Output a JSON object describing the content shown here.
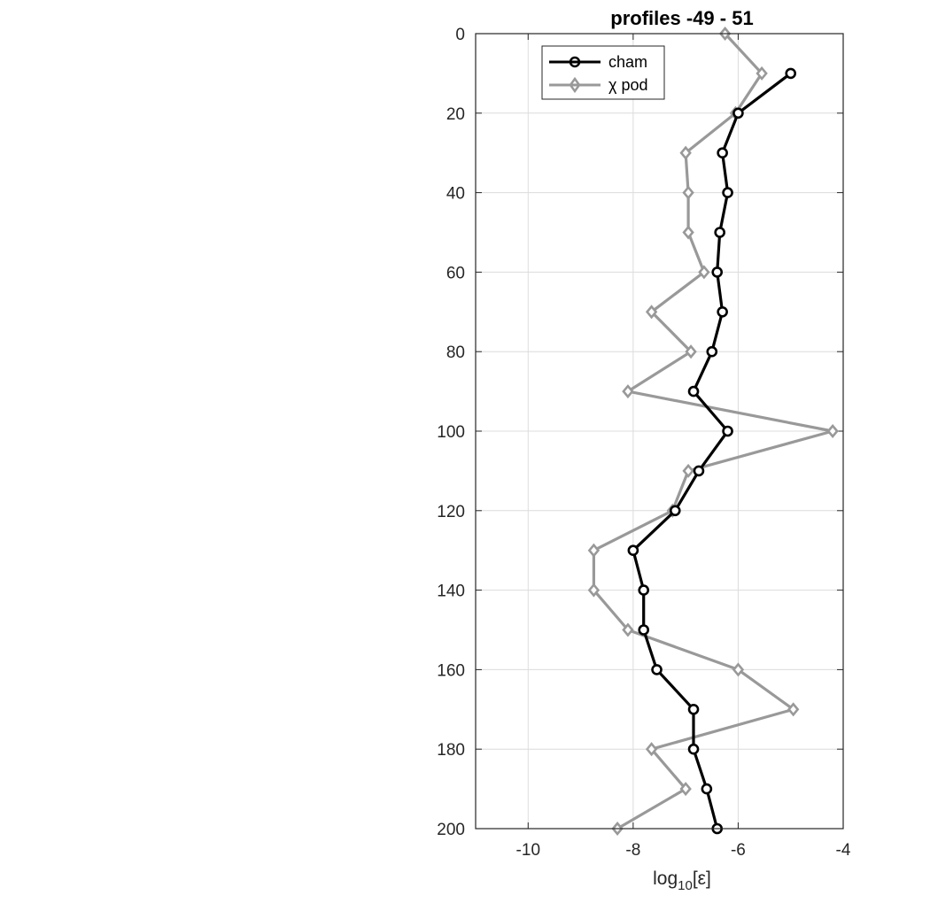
{
  "chart_data": {
    "type": "line",
    "title": "profiles -49 - 51",
    "xlabel": "log",
    "xlabel_sub": "10",
    "xlabel_suffix": "[ε]",
    "ylabel": "",
    "xlim": [
      -11,
      -4
    ],
    "ylim": [
      0,
      200
    ],
    "y_reversed": true,
    "x_ticks": [
      -10,
      -8,
      -6,
      -4
    ],
    "y_ticks": [
      0,
      20,
      40,
      60,
      80,
      100,
      120,
      140,
      160,
      180,
      200
    ],
    "grid": true,
    "legend_position": "top-left",
    "series": [
      {
        "name": "cham",
        "color": "#000000",
        "marker": "circle",
        "y": [
          10,
          20,
          30,
          40,
          50,
          60,
          70,
          80,
          90,
          100,
          110,
          120,
          130,
          140,
          150,
          160,
          170,
          180,
          190,
          200
        ],
        "x": [
          -5.0,
          -6.0,
          -6.3,
          -6.2,
          -6.35,
          -6.4,
          -6.3,
          -6.5,
          -6.85,
          -6.2,
          -6.75,
          -7.2,
          -8.0,
          -7.8,
          -7.8,
          -7.55,
          -6.85,
          -6.85,
          -6.6,
          -6.4
        ]
      },
      {
        "name": "χ pod",
        "color": "#999999",
        "marker": "diamond",
        "y": [
          0,
          10,
          20,
          30,
          40,
          50,
          60,
          70,
          80,
          90,
          100,
          110,
          120,
          130,
          140,
          150,
          160,
          170,
          180,
          190,
          200
        ],
        "x": [
          -6.25,
          -5.55,
          -6.05,
          -7.0,
          -6.95,
          -6.95,
          -6.65,
          -7.65,
          -6.9,
          -8.1,
          -4.2,
          -6.95,
          -7.25,
          -8.75,
          -8.75,
          -8.1,
          -6.0,
          -4.95,
          -7.65,
          -7.0,
          -8.3
        ]
      }
    ]
  }
}
